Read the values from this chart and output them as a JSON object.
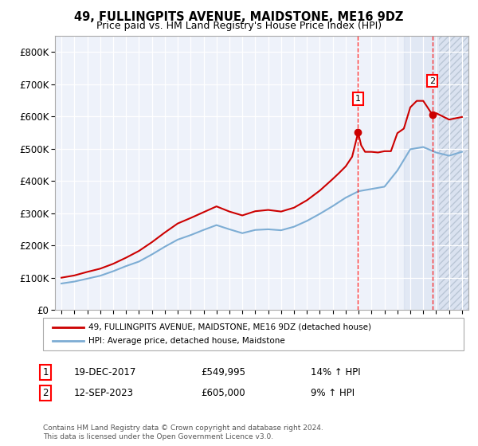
{
  "title": "49, FULLINGPITS AVENUE, MAIDSTONE, ME16 9DZ",
  "subtitle": "Price paid vs. HM Land Registry's House Price Index (HPI)",
  "ylim": [
    0,
    850000
  ],
  "yticks": [
    0,
    100000,
    200000,
    300000,
    400000,
    500000,
    600000,
    700000,
    800000
  ],
  "ytick_labels": [
    "£0",
    "£100K",
    "£200K",
    "£300K",
    "£400K",
    "£500K",
    "£600K",
    "£700K",
    "£800K"
  ],
  "xlim_start": 1994.5,
  "xlim_end": 2026.5,
  "sale1_date": 2017.96,
  "sale1_price": 549995,
  "sale1_label": "1",
  "sale2_date": 2023.71,
  "sale2_price": 605000,
  "sale2_label": "2",
  "red_line_color": "#cc0000",
  "blue_line_color": "#7dadd4",
  "background_color": "#ffffff",
  "plot_bg_color": "#eef2fa",
  "legend_entry1": "49, FULLINGPITS AVENUE, MAIDSTONE, ME16 9DZ (detached house)",
  "legend_entry2": "HPI: Average price, detached house, Maidstone",
  "annotation1_date": "19-DEC-2017",
  "annotation1_price": "£549,995",
  "annotation1_hpi": "14% ↑ HPI",
  "annotation2_date": "12-SEP-2023",
  "annotation2_price": "£605,000",
  "annotation2_hpi": "9% ↑ HPI",
  "footer": "Contains HM Land Registry data © Crown copyright and database right 2024.\nThis data is licensed under the Open Government Licence v3.0.",
  "hpi_years": [
    1995,
    1996,
    1997,
    1998,
    1999,
    2000,
    2001,
    2002,
    2003,
    2004,
    2005,
    2006,
    2007,
    2008,
    2009,
    2010,
    2011,
    2012,
    2013,
    2014,
    2015,
    2016,
    2017,
    2018,
    2019,
    2020,
    2021,
    2022,
    2023,
    2024,
    2025,
    2026
  ],
  "hpi_values": [
    82000,
    88000,
    97000,
    106000,
    120000,
    136000,
    150000,
    172000,
    196000,
    218000,
    232000,
    248000,
    263000,
    250000,
    238000,
    248000,
    250000,
    247000,
    258000,
    276000,
    298000,
    322000,
    348000,
    368000,
    375000,
    382000,
    432000,
    498000,
    505000,
    488000,
    478000,
    490000
  ],
  "red_years": [
    1995,
    1996,
    1997,
    1998,
    1999,
    2000,
    2001,
    2002,
    2003,
    2004,
    2005,
    2006,
    2007,
    2008,
    2009,
    2010,
    2011,
    2012,
    2013,
    2014,
    2015,
    2016,
    2016.5,
    2017,
    2017.5,
    2017.96,
    2018.2,
    2018.5,
    2019,
    2019.5,
    2020,
    2020.5,
    2021,
    2021.5,
    2022,
    2022.5,
    2023,
    2023.3,
    2023.71,
    2024,
    2024.5,
    2025,
    2026
  ],
  "red_values": [
    100000,
    107000,
    118000,
    128000,
    143000,
    162000,
    183000,
    210000,
    240000,
    268000,
    285000,
    303000,
    321000,
    305000,
    293000,
    306000,
    310000,
    305000,
    317000,
    340000,
    370000,
    406000,
    425000,
    445000,
    475000,
    549995,
    510000,
    490000,
    490000,
    488000,
    492000,
    492000,
    548000,
    562000,
    628000,
    648000,
    648000,
    630000,
    605000,
    610000,
    600000,
    590000,
    598000
  ]
}
